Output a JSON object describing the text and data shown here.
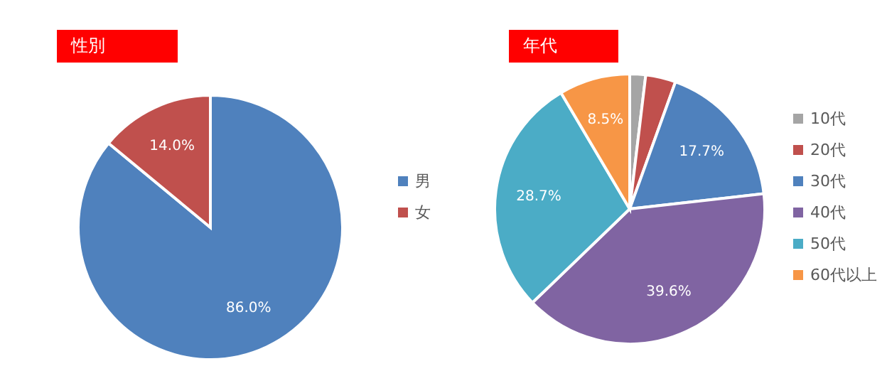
{
  "chart_data": [
    {
      "type": "pie",
      "title": "性別",
      "categories": [
        "男",
        "女"
      ],
      "values": [
        86.0,
        14.0
      ],
      "colors": [
        "#4f81bd",
        "#c0504d"
      ],
      "value_labels": [
        "86.0%",
        "14.0%"
      ],
      "legend": "right"
    },
    {
      "type": "pie",
      "title": "年代",
      "categories": [
        "10代",
        "20代",
        "30代",
        "40代",
        "50代",
        "60代以上"
      ],
      "values": [
        1.9,
        3.6,
        17.7,
        39.6,
        28.7,
        8.5
      ],
      "colors": [
        "#a5a5a5",
        "#c0504d",
        "#4f81bd",
        "#8064a2",
        "#4bacc6",
        "#f79646"
      ],
      "value_labels": [
        null,
        null,
        "17.7%",
        "39.6%",
        "28.7%",
        "8.5%"
      ],
      "legend": "right"
    }
  ]
}
